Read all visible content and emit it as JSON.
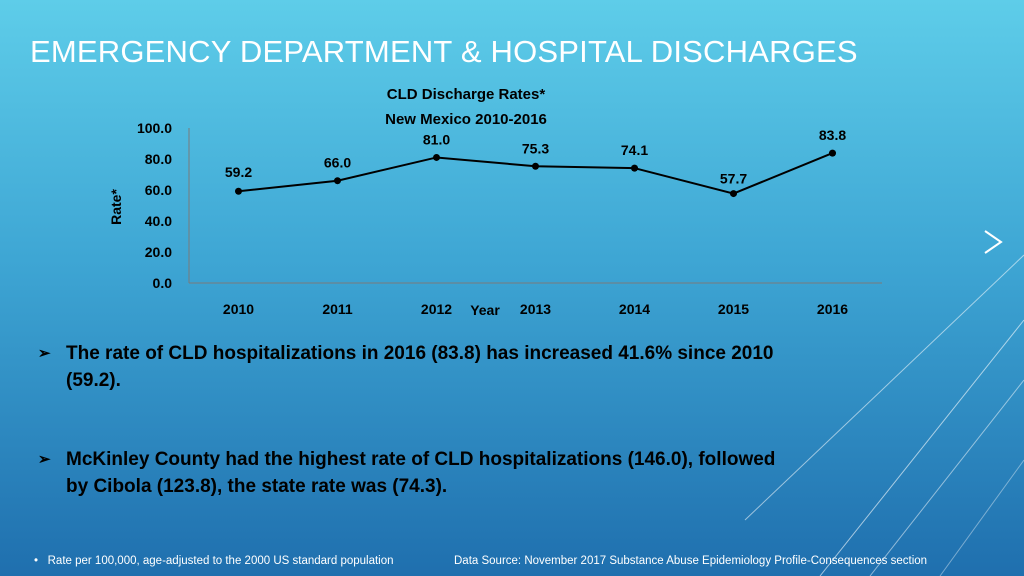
{
  "slide": {
    "title": "EMERGENCY DEPARTMENT & HOSPITAL DISCHARGES",
    "bullets": [
      "The rate of CLD hospitalizations in 2016 (83.8) has increased 41.6% since 2010 (59.2).",
      "McKinley County had the highest rate of CLD hospitalizations (146.0), followed by Cibola (123.8), the state rate was (74.3)."
    ],
    "bullet_icon": "arrow-bullet-icon",
    "footnote_marker": "•",
    "footnote": "Rate per 100,000, age-adjusted to the 2000 US standard population",
    "data_source": "Data Source: November 2017 Substance Abuse Epidemiology Profile-Consequences section",
    "colors": {
      "title": "#ffffff",
      "text": "#000000",
      "line": "#000000"
    }
  },
  "chart_data": {
    "type": "line",
    "title": "CLD Discharge Rates*",
    "subtitle": "New Mexico 2010-2016",
    "xlabel": "Year",
    "ylabel": "Rate*",
    "categories": [
      "2010",
      "2011",
      "2012",
      "2013",
      "2014",
      "2015",
      "2016"
    ],
    "values": [
      59.2,
      66.0,
      81.0,
      75.3,
      74.1,
      57.7,
      83.8
    ],
    "value_labels": [
      "59.2",
      "66.0",
      "81.0",
      "75.3",
      "74.1",
      "57.7",
      "83.8"
    ],
    "y_ticks": [
      "0.0",
      "20.0",
      "40.0",
      "60.0",
      "80.0",
      "100.0"
    ],
    "ylim": [
      0,
      100
    ],
    "grid": false,
    "legend": "none"
  }
}
